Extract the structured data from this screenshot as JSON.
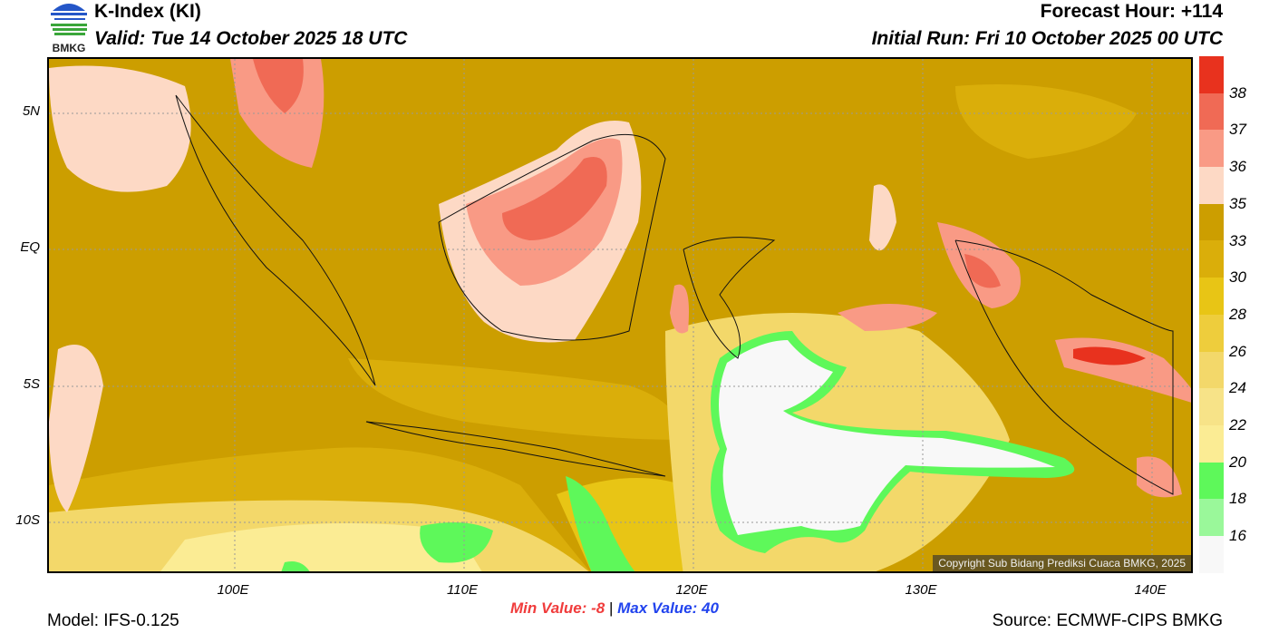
{
  "header": {
    "title": "K-Index (KI)",
    "valid": "Valid: Tue 14 October 2025 18 UTC",
    "forecast_hour": "Forecast Hour: +114",
    "initial_run": "Initial Run: Fri 10 October 2025 00 UTC",
    "logo_text": "BMKG"
  },
  "map": {
    "lat_labels": [
      "5N",
      "EQ",
      "5S",
      "10S"
    ],
    "lon_labels": [
      "100E",
      "110E",
      "120E",
      "130E",
      "140E"
    ],
    "copyright": "Copyright Sub Bidang Prediksi Cuaca BMKG, 2025"
  },
  "colorbar": {
    "labels": [
      "38",
      "37",
      "36",
      "35",
      "33",
      "30",
      "28",
      "26",
      "24",
      "22",
      "20",
      "18",
      "16"
    ],
    "colors": [
      "#e8321e",
      "#f06a55",
      "#f99a85",
      "#fdd9c5",
      "#cc9e00",
      "#daae0a",
      "#e8c515",
      "#eecd3c",
      "#f3d86a",
      "#f7e388",
      "#fbec94",
      "#5ef85a",
      "#9af89a",
      "#f8f8f8"
    ]
  },
  "footer": {
    "min_label": "Min Value:  -8",
    "separator": "|",
    "max_label": "Max Value:  40",
    "model": "Model: IFS-0.125",
    "source": "Source: ECMWF-CIPS BMKG"
  }
}
